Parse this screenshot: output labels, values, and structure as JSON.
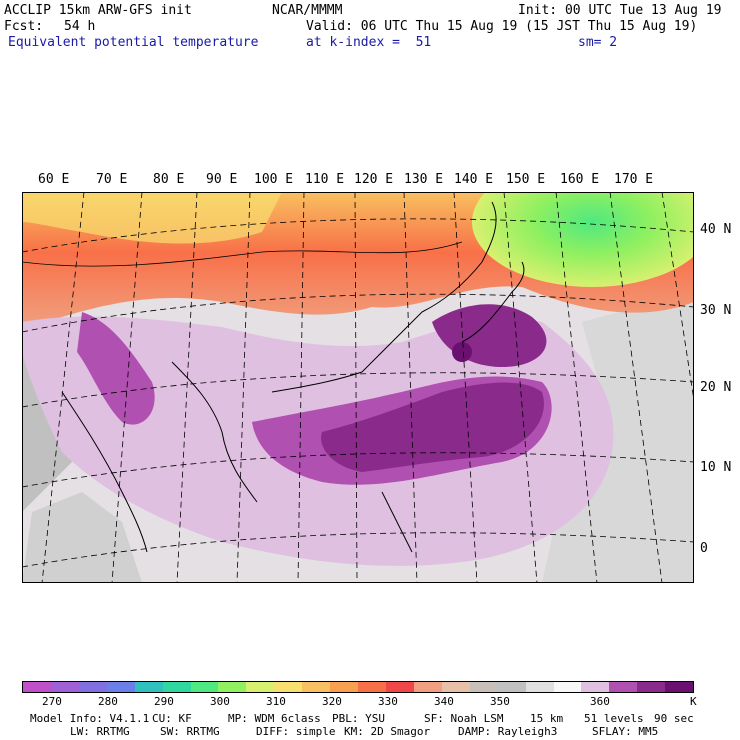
{
  "header": {
    "line1_left": "ACCLIP 15km ARW-GFS init",
    "line1_mid": "NCAR/MMMM",
    "line1_right": "Init: 00 UTC Tue 13 Aug 19",
    "fcst_label": "Fcst:",
    "fcst_value": "54 h",
    "valid": "Valid: 06 UTC Thu 15 Aug 19 (15 JST Thu 15 Aug 19)",
    "field": "Equivalent potential temperature",
    "level": "at k-index =  51",
    "smooth": "sm= 2"
  },
  "lon_labels": [
    "60 E",
    "70 E",
    "80 E",
    "90 E",
    "100 E",
    "110 E",
    "120 E",
    "130 E",
    "140 E",
    "150 E",
    "160 E",
    "170 E"
  ],
  "lat_labels": [
    "40 N",
    "30 N",
    "20 N",
    "10 N",
    "0"
  ],
  "colorbar": {
    "colors": [
      "#c050c8",
      "#a060d8",
      "#8070e0",
      "#6a80e8",
      "#30c0c0",
      "#30d8a0",
      "#50e880",
      "#90f060",
      "#d8f070",
      "#f8e070",
      "#f8c060",
      "#f8a050",
      "#f87048",
      "#f04848",
      "#f0a080",
      "#e8c0a8",
      "#c8c0b8",
      "#c0c0c0",
      "#e0e0e0",
      "#f8f8f8",
      "#e0c0e0",
      "#b050b0",
      "#8a2a8a",
      "#6a1070"
    ],
    "ticks": [
      "270",
      "280",
      "290",
      "300",
      "310",
      "320",
      "330",
      "340",
      "350",
      "360"
    ],
    "unit": "K"
  },
  "model_info": {
    "line1": [
      "Model Info: V4.1.1",
      "CU: KF",
      "MP: WDM 6class",
      "PBL: YSU",
      "SF: Noah LSM",
      "15 km",
      "51 levels",
      "90 sec"
    ],
    "line2": [
      "LW: RRTMG",
      "SW: RRTMG",
      "DIFF: simple",
      "KM: 2D Smagor",
      "DAMP: Rayleigh3",
      "SFLAY: MM5"
    ]
  }
}
